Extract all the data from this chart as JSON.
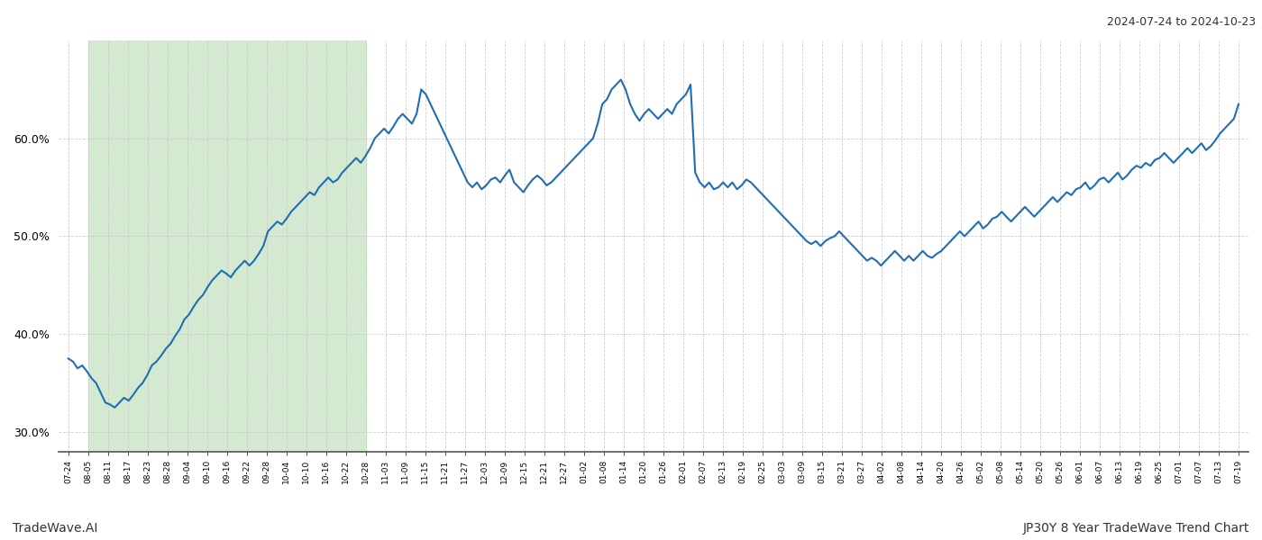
{
  "title_top_right": "2024-07-24 to 2024-10-23",
  "bottom_left": "TradeWave.AI",
  "bottom_right": "JP30Y 8 Year TradeWave Trend Chart",
  "line_color": "#1f6eb5",
  "line_width": 1.5,
  "bg_color": "#ffffff",
  "grid_color": "#c8c8c8",
  "shaded_region_color": "#d4ead0",
  "ylim": [
    28.0,
    70.0
  ],
  "yticks": [
    30.0,
    40.0,
    50.0,
    60.0
  ],
  "ytick_labels": [
    "30.0%",
    "40.0%",
    "50.0%",
    "60.0%"
  ],
  "x_labels": [
    "07-24",
    "08-05",
    "08-11",
    "08-17",
    "08-23",
    "08-28",
    "09-04",
    "09-10",
    "09-16",
    "09-22",
    "09-28",
    "10-04",
    "10-10",
    "10-16",
    "10-22",
    "10-28",
    "11-03",
    "11-09",
    "11-15",
    "11-21",
    "11-27",
    "12-03",
    "12-09",
    "12-15",
    "12-21",
    "12-27",
    "01-02",
    "01-08",
    "01-14",
    "01-20",
    "01-26",
    "02-01",
    "02-07",
    "02-13",
    "02-19",
    "02-25",
    "03-03",
    "03-09",
    "03-15",
    "03-21",
    "03-27",
    "04-02",
    "04-08",
    "04-14",
    "04-20",
    "04-26",
    "05-02",
    "05-08",
    "05-14",
    "05-20",
    "05-26",
    "06-01",
    "06-07",
    "06-13",
    "06-19",
    "06-25",
    "07-01",
    "07-07",
    "07-13",
    "07-19"
  ],
  "shaded_x_start_label": "08-05",
  "shaded_x_end_label": "10-28",
  "values": [
    37.5,
    37.2,
    36.5,
    36.8,
    36.2,
    35.5,
    35.0,
    34.0,
    33.0,
    32.8,
    32.5,
    33.0,
    33.5,
    33.2,
    33.8,
    34.5,
    35.0,
    35.8,
    36.8,
    37.2,
    37.8,
    38.5,
    39.0,
    39.8,
    40.5,
    41.5,
    42.0,
    42.8,
    43.5,
    44.0,
    44.8,
    45.5,
    46.0,
    46.5,
    46.2,
    45.8,
    46.5,
    47.0,
    47.5,
    47.0,
    47.5,
    48.2,
    49.0,
    50.5,
    51.0,
    51.5,
    51.2,
    51.8,
    52.5,
    53.0,
    53.5,
    54.0,
    54.5,
    54.2,
    55.0,
    55.5,
    56.0,
    55.5,
    55.8,
    56.5,
    57.0,
    57.5,
    58.0,
    57.5,
    58.2,
    59.0,
    60.0,
    60.5,
    61.0,
    60.5,
    61.2,
    62.0,
    62.5,
    62.0,
    61.5,
    62.5,
    65.0,
    64.5,
    63.5,
    62.5,
    61.5,
    60.5,
    59.5,
    58.5,
    57.5,
    56.5,
    55.5,
    55.0,
    55.5,
    54.8,
    55.2,
    55.8,
    56.0,
    55.5,
    56.2,
    56.8,
    55.5,
    55.0,
    54.5,
    55.2,
    55.8,
    56.2,
    55.8,
    55.2,
    55.5,
    56.0,
    56.5,
    57.0,
    57.5,
    58.0,
    58.5,
    59.0,
    59.5,
    60.0,
    61.5,
    63.5,
    64.0,
    65.0,
    65.5,
    66.0,
    65.0,
    63.5,
    62.5,
    61.8,
    62.5,
    63.0,
    62.5,
    62.0,
    62.5,
    63.0,
    62.5,
    63.5,
    64.0,
    64.5,
    65.5,
    56.5,
    55.5,
    55.0,
    55.5,
    54.8,
    55.0,
    55.5,
    55.0,
    55.5,
    54.8,
    55.2,
    55.8,
    55.5,
    55.0,
    54.5,
    54.0,
    53.5,
    53.0,
    52.5,
    52.0,
    51.5,
    51.0,
    50.5,
    50.0,
    49.5,
    49.2,
    49.5,
    49.0,
    49.5,
    49.8,
    50.0,
    50.5,
    50.0,
    49.5,
    49.0,
    48.5,
    48.0,
    47.5,
    47.8,
    47.5,
    47.0,
    47.5,
    48.0,
    48.5,
    48.0,
    47.5,
    48.0,
    47.5,
    48.0,
    48.5,
    48.0,
    47.8,
    48.2,
    48.5,
    49.0,
    49.5,
    50.0,
    50.5,
    50.0,
    50.5,
    51.0,
    51.5,
    50.8,
    51.2,
    51.8,
    52.0,
    52.5,
    52.0,
    51.5,
    52.0,
    52.5,
    53.0,
    52.5,
    52.0,
    52.5,
    53.0,
    53.5,
    54.0,
    53.5,
    54.0,
    54.5,
    54.2,
    54.8,
    55.0,
    55.5,
    54.8,
    55.2,
    55.8,
    56.0,
    55.5,
    56.0,
    56.5,
    55.8,
    56.2,
    56.8,
    57.2,
    57.0,
    57.5,
    57.2,
    57.8,
    58.0,
    58.5,
    58.0,
    57.5,
    58.0,
    58.5,
    59.0,
    58.5,
    59.0,
    59.5,
    58.8,
    59.2,
    59.8,
    60.5,
    61.0,
    61.5,
    62.0,
    63.5
  ]
}
